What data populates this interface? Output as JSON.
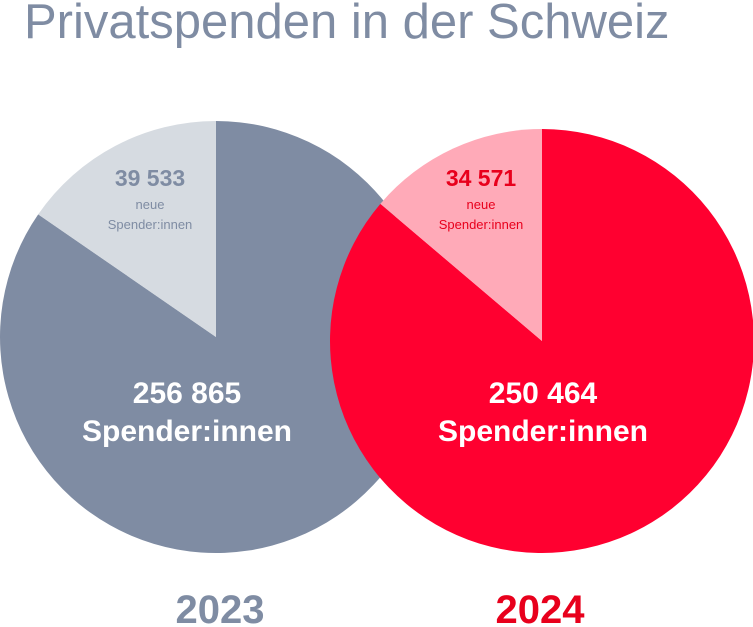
{
  "title": "Privatspenden in der Schweiz",
  "colors": {
    "title": "#7f8ca3",
    "grey_main": "#7f8ca3",
    "grey_light": "#d6dbe1",
    "grey_label": "#7f8ca3",
    "red_main": "#ff0030",
    "red_light": "#ffaab8",
    "red_label": "#e8001c"
  },
  "chart_data": {
    "type": "pie",
    "title": "Privatspenden in der Schweiz",
    "charts": [
      {
        "year": "2023",
        "total": 256865,
        "total_label": "256 865",
        "total_unit": "Spender:innen",
        "new": 39533,
        "new_label": "39 533",
        "new_line1": "neue",
        "new_line2": "Spender:innen"
      },
      {
        "year": "2024",
        "total": 250464,
        "total_label": "250 464",
        "total_unit": "Spender:innen",
        "new": 34571,
        "new_label": "34 571",
        "new_line1": "neue",
        "new_line2": "Spender:innen"
      }
    ]
  }
}
